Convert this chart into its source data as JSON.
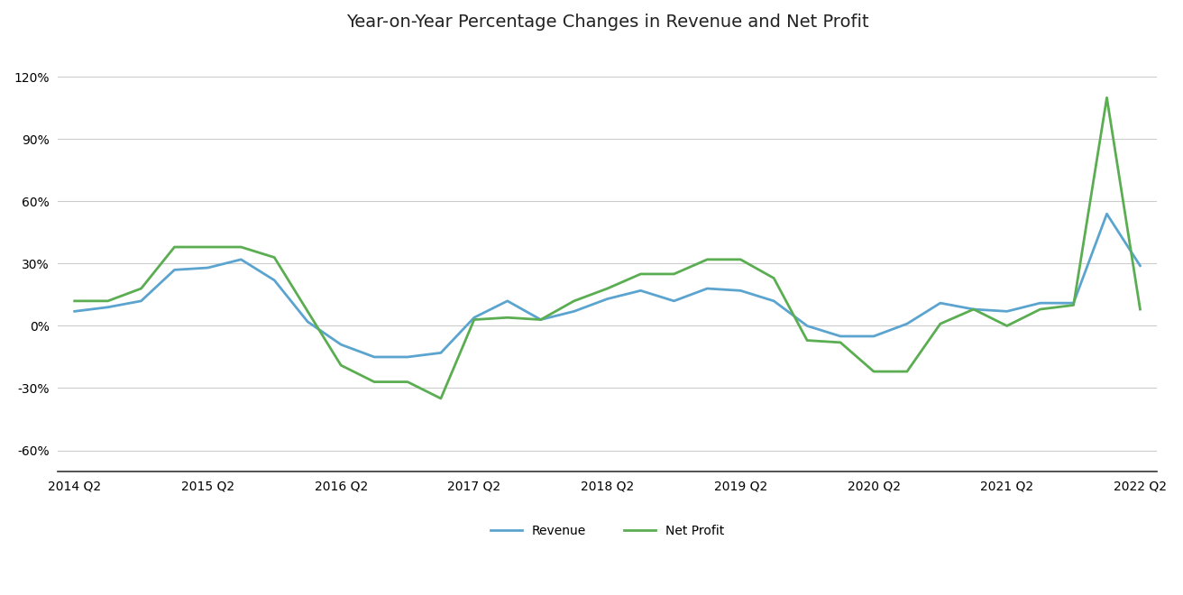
{
  "title": "Year-on-Year Percentage Changes in Revenue and Net Profit",
  "revenue": [
    7,
    9,
    12,
    27,
    28,
    32,
    22,
    2,
    -9,
    -15,
    -15,
    -13,
    4,
    12,
    3,
    7,
    13,
    17,
    12,
    18,
    17,
    12,
    0,
    -5,
    -5,
    1,
    11,
    8,
    7,
    11,
    11,
    54,
    29
  ],
  "net_profit": [
    12,
    12,
    18,
    38,
    38,
    38,
    33,
    7,
    -19,
    -27,
    -27,
    -35,
    3,
    4,
    3,
    12,
    18,
    25,
    25,
    32,
    32,
    23,
    -7,
    -8,
    -22,
    -22,
    1,
    8,
    0,
    8,
    10,
    110,
    8
  ],
  "x_labels": [
    "2014 Q2",
    "2015 Q2",
    "2016 Q2",
    "2017 Q2",
    "2018 Q2",
    "2019 Q2",
    "2020 Q2",
    "2021 Q2",
    "2022 Q2"
  ],
  "yticks": [
    -60,
    -30,
    0,
    30,
    60,
    90,
    120
  ],
  "ylim": [
    -70,
    135
  ],
  "revenue_color": "#5BA4CF",
  "net_profit_color": "#5BAD52",
  "background_color": "#ffffff",
  "grid_color": "#cccccc",
  "line_width": 2.0
}
